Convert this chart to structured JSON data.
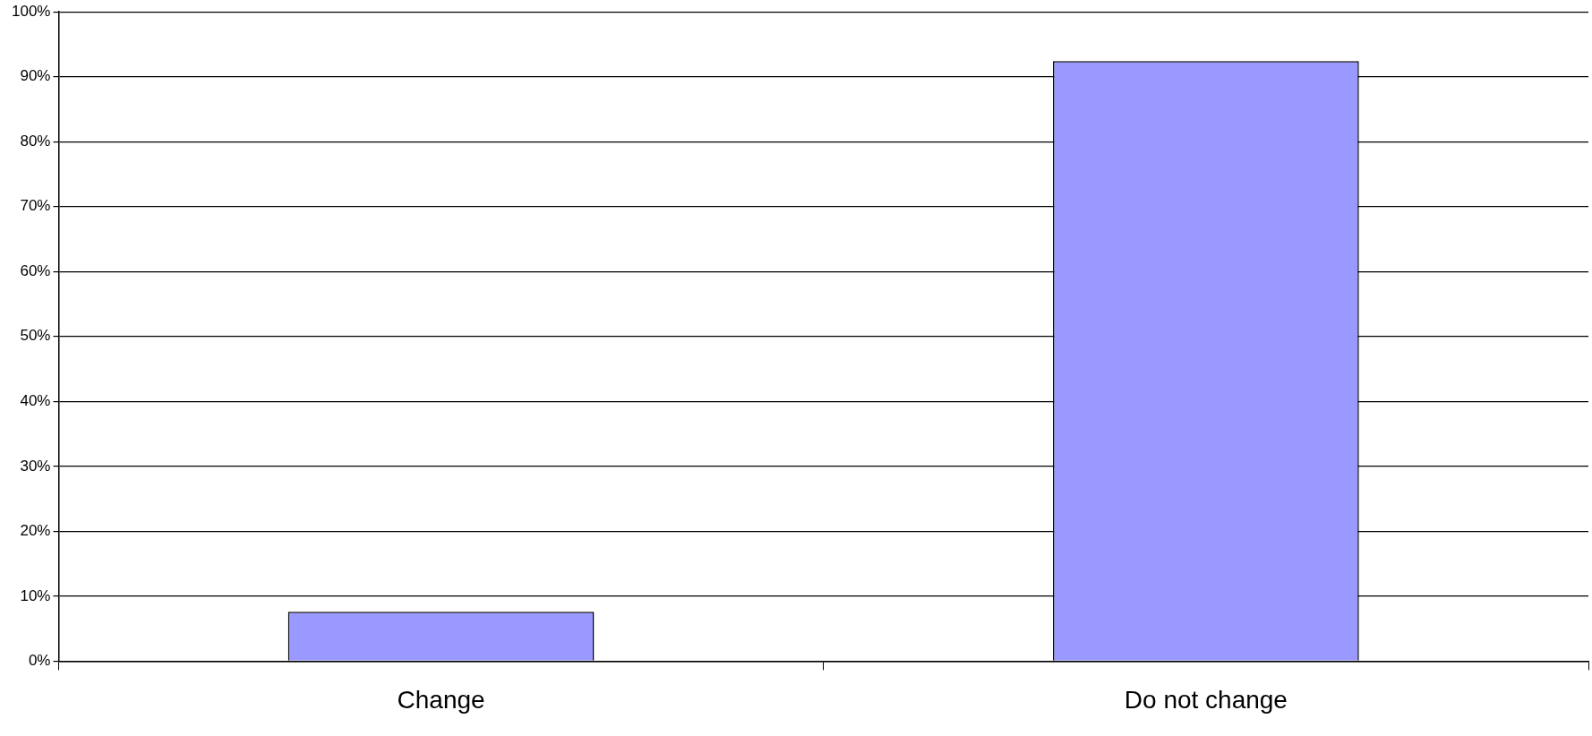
{
  "chart_data": {
    "type": "bar",
    "categories": [
      "Change",
      "Do not change"
    ],
    "values": [
      7.6,
      92.4
    ],
    "color": "#9999ff",
    "ylim": [
      0,
      100
    ],
    "yticks": [
      {
        "value": 0,
        "label": "0%"
      },
      {
        "value": 10,
        "label": "10%"
      },
      {
        "value": 20,
        "label": "20%"
      },
      {
        "value": 30,
        "label": "30%"
      },
      {
        "value": 40,
        "label": "40%"
      },
      {
        "value": 50,
        "label": "50%"
      },
      {
        "value": 60,
        "label": "60%"
      },
      {
        "value": 70,
        "label": "70%"
      },
      {
        "value": 80,
        "label": "80%"
      },
      {
        "value": 90,
        "label": "90%"
      },
      {
        "value": 100,
        "label": "100%"
      }
    ],
    "grid": "y",
    "legend": false
  }
}
